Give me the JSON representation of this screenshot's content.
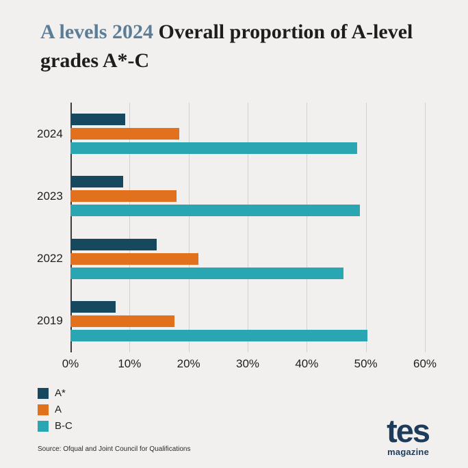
{
  "title": {
    "accent": "A levels 2024",
    "rest": "Overall proportion of A-level grades A*-C"
  },
  "chart_data": {
    "type": "bar",
    "orientation": "horizontal",
    "title": "A levels 2024 Overall proportion of A-level grades A*-C",
    "categories": [
      "2024",
      "2023",
      "2022",
      "2019"
    ],
    "series": [
      {
        "name": "A*",
        "color": "#16485f",
        "values": [
          9.3,
          8.9,
          14.6,
          7.7
        ]
      },
      {
        "name": "A",
        "color": "#e2711d",
        "values": [
          18.4,
          18.0,
          21.7,
          17.6
        ]
      },
      {
        "name": "B-C",
        "color": "#2aa6b3",
        "values": [
          48.5,
          49.0,
          46.2,
          50.3
        ]
      }
    ],
    "xlim": [
      0,
      60
    ],
    "x_ticks": [
      "0%",
      "10%",
      "20%",
      "30%",
      "40%",
      "50%",
      "60%"
    ],
    "xlabel": "",
    "ylabel": "",
    "grid": true,
    "legend_position": "bottom-left"
  },
  "source": "Source: Ofqual and Joint Council for Qualifications",
  "logo": {
    "word": "tes",
    "sub": "magazine"
  },
  "colors": {
    "background": "#f2f0ee",
    "title_accent": "#5b7d96",
    "title_main": "#1d1d1b",
    "logo_navy": "#1d3c5c",
    "gridline": "#d3d1cf",
    "axis_line": "#3c3c3c"
  }
}
